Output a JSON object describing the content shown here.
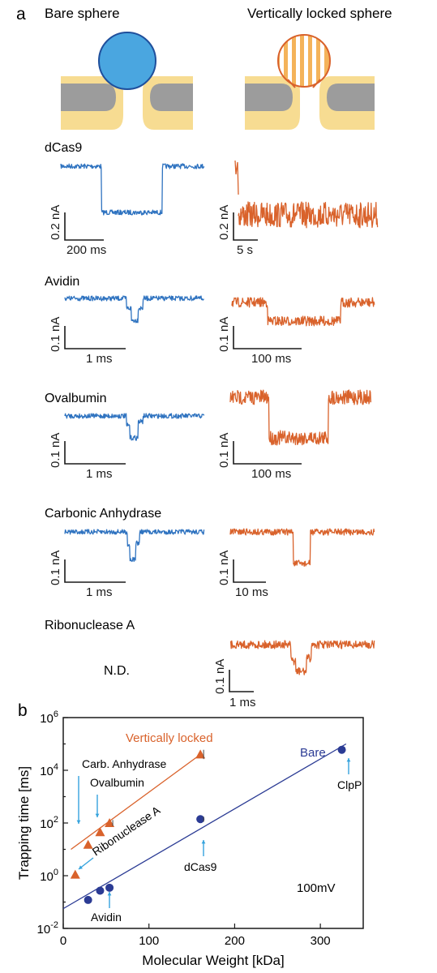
{
  "panel_a": {
    "letter": "a",
    "col_left_title": "Bare sphere",
    "col_right_title": "Vertically locked sphere",
    "nd_label": "N.D.",
    "colors": {
      "bare": "#2f73c0",
      "locked": "#d9622b",
      "sphere_blue": "#4aa6e0",
      "membrane": "#f7dc92",
      "pore": "#9c9c9c"
    },
    "rows": [
      {
        "name": "dCas9",
        "left": {
          "scale_y": "0.2 nA",
          "scale_x": "200 ms"
        },
        "right": {
          "scale_y": "0.2 nA",
          "scale_x": "5 s"
        }
      },
      {
        "name": "Avidin",
        "left": {
          "scale_y": "0.1 nA",
          "scale_x": "1 ms"
        },
        "right": {
          "scale_y": "0.1 nA",
          "scale_x": "100 ms"
        }
      },
      {
        "name": "Ovalbumin",
        "left": {
          "scale_y": "0.1 nA",
          "scale_x": "1 ms"
        },
        "right": {
          "scale_y": "0.1 nA",
          "scale_x": "100 ms"
        }
      },
      {
        "name": "Carbonic Anhydrase",
        "left": {
          "scale_y": "0.1 nA",
          "scale_x": "1 ms"
        },
        "right": {
          "scale_y": "0.1 nA",
          "scale_x": "10 ms"
        }
      },
      {
        "name": "Ribonuclease A",
        "left": null,
        "right": {
          "scale_y": "0.1 nA",
          "scale_x": "1 ms"
        }
      }
    ]
  },
  "chart_data": {
    "panel_letter": "b",
    "type": "scatter",
    "xlabel": "Molecular Weight [kDa]",
    "ylabel": "Trapping time [ms]",
    "xlim": [
      0,
      350
    ],
    "ylim_log10": [
      -2,
      6
    ],
    "x_ticks": [
      "0",
      "100",
      "200",
      "300"
    ],
    "x_tick_values": [
      0,
      100,
      200,
      300
    ],
    "y_tick_exponents": [
      -2,
      0,
      2,
      4,
      6
    ],
    "y_tick_base": "10",
    "scale": "log-y",
    "condition": "100mV",
    "series": [
      {
        "name": "Vertically locked",
        "color": "#d9622b",
        "marker": "triangle",
        "x": [
          14,
          29,
          43,
          54,
          160
        ],
        "y": [
          1.1,
          15,
          45,
          100,
          40000
        ],
        "fit_x": [
          9,
          160
        ],
        "fit_y_log10": [
          1.0,
          4.6
        ]
      },
      {
        "name": "Bare",
        "color": "#2b3b94",
        "marker": "circle",
        "x": [
          29,
          43,
          54,
          160,
          325
        ],
        "y": [
          0.12,
          0.27,
          0.35,
          140,
          60000
        ],
        "fit_x": [
          0,
          330
        ],
        "fit_y_log10": [
          -1.25,
          5.0
        ]
      }
    ],
    "annotations": [
      {
        "text": "Carb. Anhydrase",
        "target_series": "Vertically locked",
        "target_x": 29
      },
      {
        "text": "Ovalbumin",
        "target_series": "Vertically locked",
        "target_x": 43
      },
      {
        "text": "Ribonuclease A",
        "target_series": "Vertically locked",
        "target_x": 14
      },
      {
        "text": "Avidin",
        "target_series": "Bare",
        "target_x": 54
      },
      {
        "text": "dCas9",
        "target_series": "Bare",
        "target_x": 160
      },
      {
        "text": "ClpP",
        "target_series": "Bare",
        "target_x": 325
      }
    ]
  }
}
